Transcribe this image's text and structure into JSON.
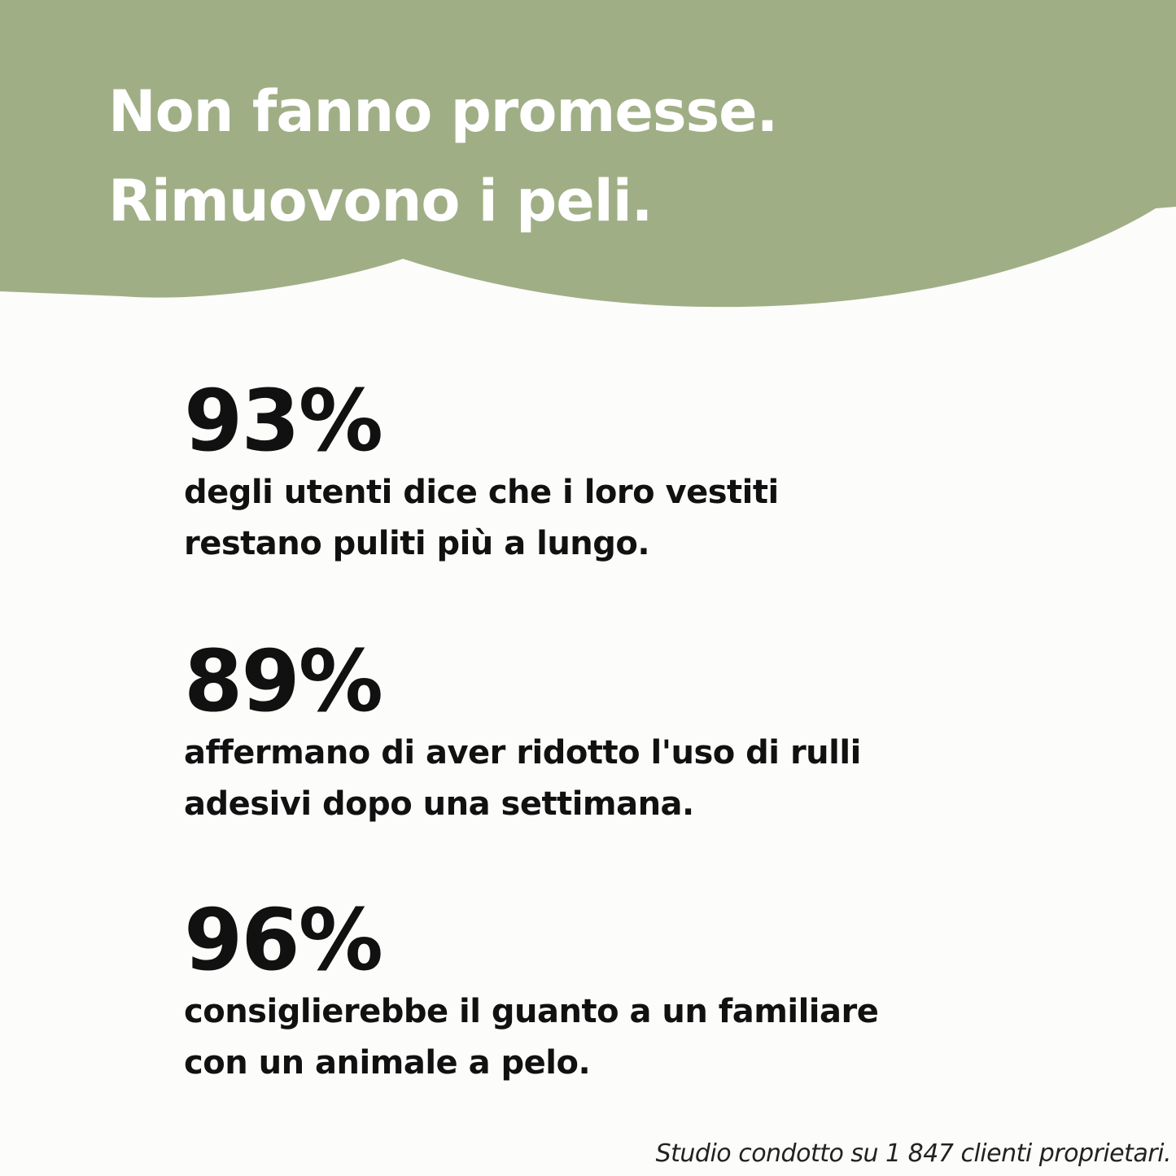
{
  "colors": {
    "header_green": "#a0ae86",
    "background": "#fcfcfa",
    "text": "#111111"
  },
  "header": {
    "title_lines": [
      "Non fanno promesse.",
      "Rimuovono i peli."
    ]
  },
  "stats": [
    {
      "value": "93%",
      "lines": [
        "degli utenti dice che i loro vestiti",
        "restano puliti più a lungo."
      ]
    },
    {
      "value": "89%",
      "lines": [
        "affermano di aver ridotto l'uso di rulli",
        "adesivi dopo una settimana."
      ]
    },
    {
      "value": "96%",
      "lines": [
        "consiglierebbe il guanto a un familiare",
        "con un animale a pelo."
      ]
    }
  ],
  "footnote": "Studio condotto su 1 847 clienti proprietari."
}
